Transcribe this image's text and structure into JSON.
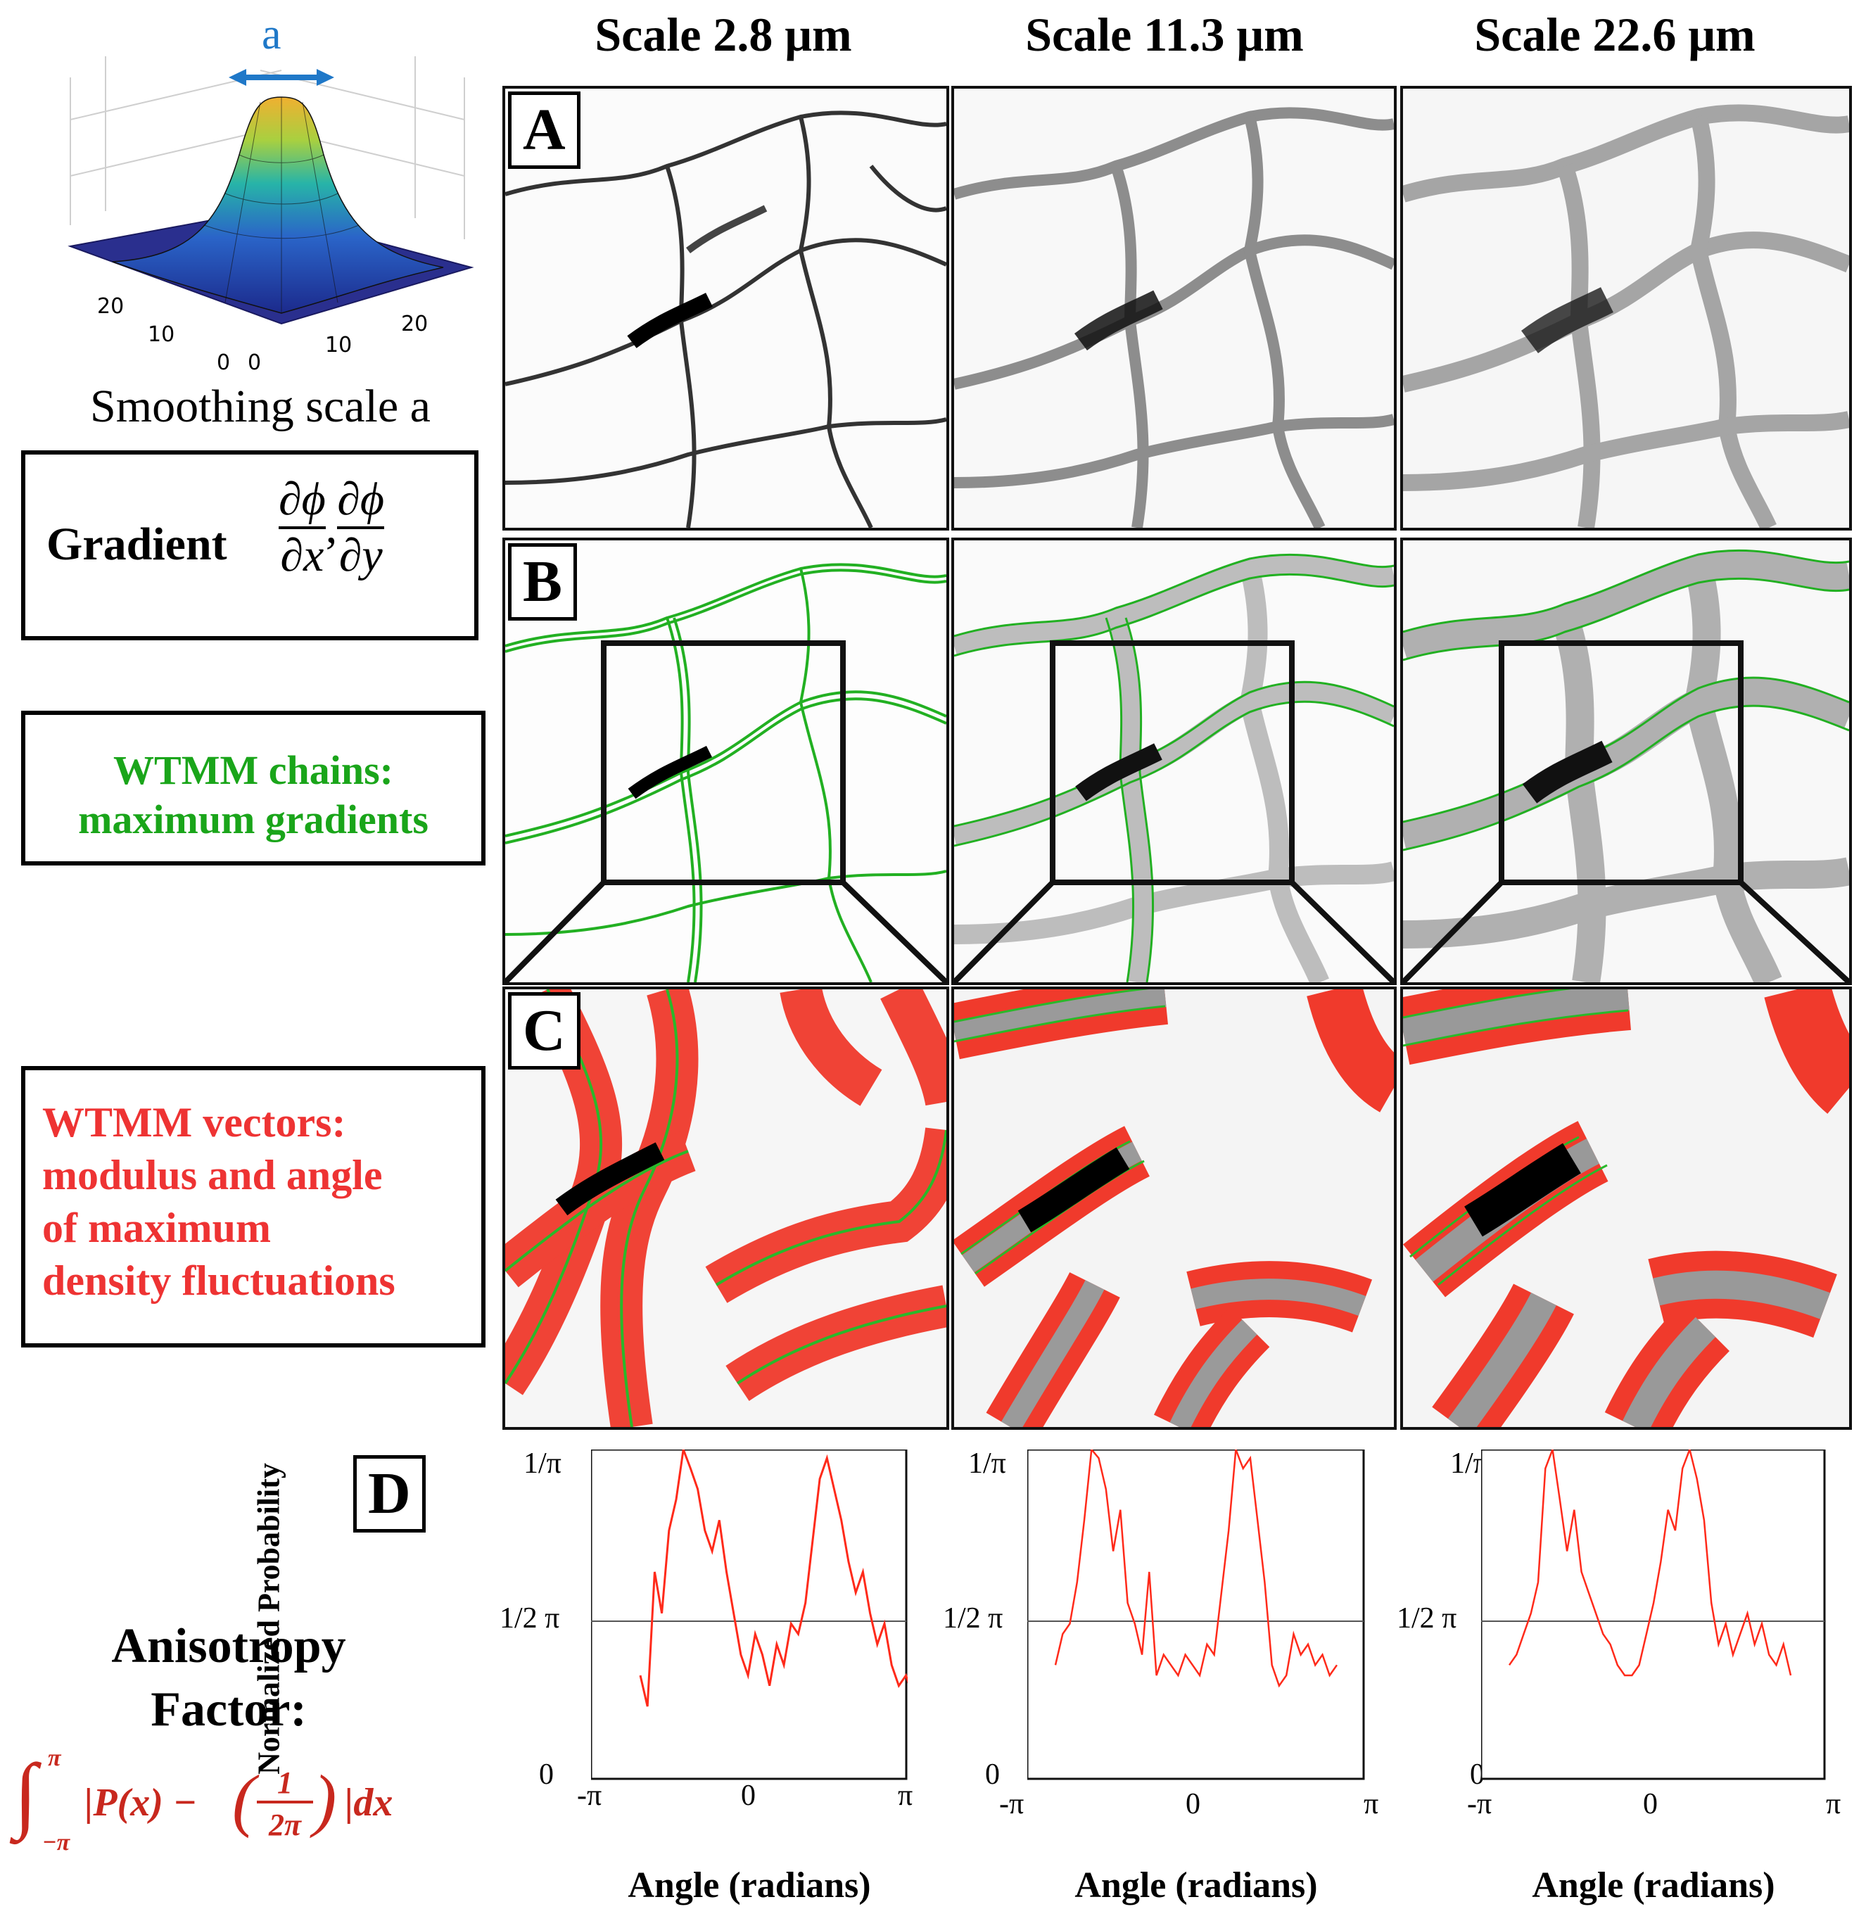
{
  "left": {
    "gauss_label": "a",
    "gauss_ticks": [
      "20",
      "10",
      "0",
      "0",
      "10",
      "20"
    ],
    "smoothing_caption": "Smoothing scale a",
    "gradient_title": "Gradient",
    "gradient_formula": "∂ϕ/∂x, ∂ϕ/∂y",
    "chains_line1": "WTMM chains:",
    "chains_line2": "maximum gradients",
    "vectors_line1": "WTMM vectors:",
    "vectors_line2": "modulus and angle",
    "vectors_line3": "of maximum",
    "vectors_line4": "density fluctuations",
    "aniso_line1": "Anisotropy",
    "aniso_line2": "Factor:",
    "aniso_formula": "∫_{-π}^{π} |P(x) − (1/2π)| dx",
    "colors": {
      "green": "#1aa51a",
      "red": "#ee3333",
      "blue": "#1f78c8"
    }
  },
  "columns": [
    {
      "scale": "Scale  2.8 μm"
    },
    {
      "scale": "Scale 11.3  μm"
    },
    {
      "scale": "Scale 22.6  μm"
    }
  ],
  "rows": {
    "A": "A",
    "B": "B",
    "C": "C",
    "D": "D"
  },
  "plots": {
    "ylabel": "Normalized Probability",
    "yticks": [
      "1/π",
      "1/2 π",
      "0"
    ],
    "xticks": [
      "-π",
      "0",
      "π"
    ],
    "xlabel": "Angle (radians)"
  },
  "chart_data": [
    {
      "type": "line",
      "xlabel": "Angle (radians)",
      "ylabel": "Normalized Probability",
      "xlim": [
        -3.1416,
        3.1416
      ],
      "ylim": [
        0,
        0.3183
      ],
      "series": [
        {
          "values": [
            0.1,
            0.07,
            0.2,
            0.16,
            0.24,
            0.27,
            0.32,
            0.3,
            0.28,
            0.24,
            0.22,
            0.25,
            0.2,
            0.16,
            0.12,
            0.1,
            0.14,
            0.12,
            0.09,
            0.13,
            0.11,
            0.15,
            0.14,
            0.17,
            0.23,
            0.29,
            0.31,
            0.28,
            0.25,
            0.21,
            0.18,
            0.2,
            0.16,
            0.13,
            0.15,
            0.11,
            0.09,
            0.1,
            0.08,
            0.07
          ]
        }
      ]
    },
    {
      "type": "line",
      "xlabel": "Angle (radians)",
      "ylabel": "Normalized Probability",
      "xlim": [
        -3.1416,
        3.1416
      ],
      "ylim": [
        0,
        0.3183
      ],
      "series": [
        {
          "values": [
            0.11,
            0.14,
            0.15,
            0.19,
            0.25,
            0.32,
            0.31,
            0.28,
            0.22,
            0.26,
            0.17,
            0.15,
            0.12,
            0.2,
            0.1,
            0.12,
            0.11,
            0.1,
            0.12,
            0.11,
            0.1,
            0.13,
            0.12,
            0.18,
            0.24,
            0.32,
            0.3,
            0.31,
            0.25,
            0.19,
            0.11,
            0.09,
            0.1,
            0.14,
            0.12,
            0.13,
            0.11,
            0.12,
            0.1,
            0.11
          ]
        }
      ]
    },
    {
      "type": "line",
      "xlabel": "Angle (radians)",
      "ylabel": "Normalized Probability",
      "xlim": [
        -3.1416,
        3.1416
      ],
      "ylim": [
        0,
        0.3183
      ],
      "series": [
        {
          "values": [
            0.11,
            0.12,
            0.14,
            0.16,
            0.19,
            0.3,
            0.32,
            0.27,
            0.22,
            0.26,
            0.2,
            0.18,
            0.16,
            0.14,
            0.13,
            0.11,
            0.1,
            0.1,
            0.11,
            0.14,
            0.17,
            0.21,
            0.26,
            0.24,
            0.3,
            0.32,
            0.29,
            0.25,
            0.17,
            0.13,
            0.15,
            0.12,
            0.14,
            0.16,
            0.13,
            0.15,
            0.12,
            0.11,
            0.13,
            0.1
          ]
        }
      ]
    }
  ]
}
